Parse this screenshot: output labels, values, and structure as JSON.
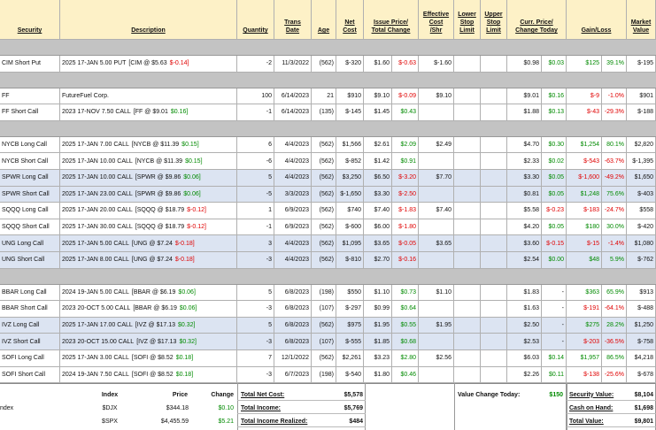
{
  "table": {
    "headers": [
      [
        "Security"
      ],
      [
        "Description"
      ],
      [
        "Quantity"
      ],
      [
        "Trans",
        "Date"
      ],
      [
        "Age"
      ],
      [
        "Net",
        "Cost"
      ],
      [
        "Issue Price/",
        "Total Change"
      ],
      [
        "Effective",
        "Cost",
        "/Shr"
      ],
      [
        "Lower",
        "Stop",
        "Limit"
      ],
      [
        "Upper",
        "Stop",
        "Limit"
      ],
      [
        "Curr. Price/",
        "Change Today"
      ],
      [
        "Gain/Loss"
      ],
      [
        "Market",
        "Value"
      ]
    ],
    "groups": [
      [
        {
          "security": "CIM Short Put",
          "description": "2025 17-JAN 5.00 PUT",
          "underlying": "[CIM @ $5.63",
          "underlying_change": "$-0.14]",
          "quantity": "-2",
          "trans_date": "11/3/2022",
          "age": "(562)",
          "net_cost": "$-320",
          "issue_price": "$1.60",
          "total_change": "$-0.63",
          "effective_cost": "$-1.60",
          "curr_price": "$0.98",
          "change_today": "$0.03",
          "gain": "$125",
          "gain_pct": "39.1%",
          "market_value": "$-195"
        }
      ],
      [
        {
          "security": "FF",
          "description": "FutureFuel Corp.",
          "quantity": "100",
          "trans_date": "6/14/2023",
          "age": "21",
          "net_cost": "$910",
          "issue_price": "$9.10",
          "total_change": "$-0.09",
          "effective_cost": "$9.10",
          "curr_price": "$9.01",
          "change_today": "$0.16",
          "gain": "$-9",
          "gain_pct": "-1.0%",
          "market_value": "$901"
        },
        {
          "security": "FF Short Call",
          "description": "2023 17-NOV 7.50 CALL",
          "underlying": "[FF @ $9.01",
          "underlying_change": "$0.16]",
          "quantity": "-1",
          "trans_date": "6/14/2023",
          "age": "(135)",
          "net_cost": "$-145",
          "issue_price": "$1.45",
          "total_change": "$0.43",
          "curr_price": "$1.88",
          "change_today": "$0.13",
          "gain": "$-43",
          "gain_pct": "-29.3%",
          "market_value": "$-188"
        }
      ],
      [
        {
          "security": "NYCB Long Call",
          "description": "2025 17-JAN 7.00 CALL",
          "underlying": "[NYCB @ $11.39",
          "underlying_change": "$0.15]",
          "quantity": "6",
          "trans_date": "4/4/2023",
          "age": "(562)",
          "net_cost": "$1,566",
          "issue_price": "$2.61",
          "total_change": "$2.09",
          "effective_cost": "$2.49",
          "curr_price": "$4.70",
          "change_today": "$0.30",
          "gain": "$1,254",
          "gain_pct": "80.1%",
          "market_value": "$2,820"
        },
        {
          "security": "NYCB Short Call",
          "description": "2025 17-JAN 10.00 CALL",
          "underlying": "[NYCB @ $11.39",
          "underlying_change": "$0.15]",
          "quantity": "-6",
          "trans_date": "4/4/2023",
          "age": "(562)",
          "net_cost": "$-852",
          "issue_price": "$1.42",
          "total_change": "$0.91",
          "curr_price": "$2.33",
          "change_today": "$0.02",
          "gain": "$-543",
          "gain_pct": "-63.7%",
          "market_value": "$-1,395"
        },
        {
          "security": "SPWR Long Call",
          "description": "2025 17-JAN 10.00 CALL",
          "underlying": "[SPWR @ $9.86",
          "underlying_change": "$0.06]",
          "quantity": "5",
          "trans_date": "4/4/2023",
          "age": "(562)",
          "net_cost": "$3,250",
          "issue_price": "$6.50",
          "total_change": "$-3.20",
          "effective_cost": "$7.70",
          "curr_price": "$3.30",
          "change_today": "$0.05",
          "gain": "$-1,600",
          "gain_pct": "-49.2%",
          "market_value": "$1,650",
          "highlight": true
        },
        {
          "security": "SPWR Short Call",
          "description": "2025 17-JAN 23.00 CALL",
          "underlying": "[SPWR @ $9.86",
          "underlying_change": "$0.06]",
          "quantity": "-5",
          "trans_date": "3/3/2023",
          "age": "(562)",
          "net_cost": "$-1,650",
          "issue_price": "$3.30",
          "total_change": "$-2.50",
          "curr_price": "$0.81",
          "change_today": "$0.05",
          "gain": "$1,248",
          "gain_pct": "75.6%",
          "market_value": "$-403",
          "highlight": true
        },
        {
          "security": "SQQQ Long Call",
          "description": "2025 17-JAN 20.00 CALL",
          "underlying": "[SQQQ @ $18.79",
          "underlying_change": "$-0.12]",
          "quantity": "1",
          "trans_date": "6/9/2023",
          "age": "(562)",
          "net_cost": "$740",
          "issue_price": "$7.40",
          "total_change": "$-1.83",
          "effective_cost": "$7.40",
          "curr_price": "$5.58",
          "change_today": "$-0.23",
          "gain": "$-183",
          "gain_pct": "-24.7%",
          "market_value": "$558"
        },
        {
          "security": "SQQQ Short Call",
          "description": "2025 17-JAN 30.00 CALL",
          "underlying": "[SQQQ @ $18.79",
          "underlying_change": "$-0.12]",
          "quantity": "-1",
          "trans_date": "6/9/2023",
          "age": "(562)",
          "net_cost": "$-600",
          "issue_price": "$6.00",
          "total_change": "$-1.80",
          "curr_price": "$4.20",
          "change_today": "$0.05",
          "gain": "$180",
          "gain_pct": "30.0%",
          "market_value": "$-420"
        },
        {
          "security": "UNG Long Call",
          "description": "2025 17-JAN 5.00 CALL",
          "underlying": "[UNG @ $7.24",
          "underlying_change": "$-0.18]",
          "quantity": "3",
          "trans_date": "4/4/2023",
          "age": "(562)",
          "net_cost": "$1,095",
          "issue_price": "$3.65",
          "total_change": "$-0.05",
          "effective_cost": "$3.65",
          "curr_price": "$3.60",
          "change_today": "$-0.15",
          "gain": "$-15",
          "gain_pct": "-1.4%",
          "market_value": "$1,080",
          "highlight": true
        },
        {
          "security": "UNG Short Call",
          "description": "2025 17-JAN 8.00 CALL",
          "underlying": "[UNG @ $7.24",
          "underlying_change": "$-0.18]",
          "quantity": "-3",
          "trans_date": "4/4/2023",
          "age": "(562)",
          "net_cost": "$-810",
          "issue_price": "$2.70",
          "total_change": "$-0.16",
          "curr_price": "$2.54",
          "change_today": "$0.00",
          "gain": "$48",
          "gain_pct": "5.9%",
          "market_value": "$-762",
          "highlight": true
        }
      ],
      [
        {
          "security": "BBAR Long Call",
          "description": "2024 19-JAN 5.00 CALL",
          "underlying": "[BBAR @ $6.19",
          "underlying_change": "$0.06]",
          "quantity": "5",
          "trans_date": "6/8/2023",
          "age": "(198)",
          "net_cost": "$550",
          "issue_price": "$1.10",
          "total_change": "$0.73",
          "effective_cost": "$1.10",
          "curr_price": "$1.83",
          "change_today": "-",
          "gain": "$363",
          "gain_pct": "65.9%",
          "market_value": "$913"
        },
        {
          "security": "BBAR Short Call",
          "description": "2023 20-OCT 5.00 CALL",
          "underlying": "[BBAR @ $6.19",
          "underlying_change": "$0.06]",
          "quantity": "-3",
          "trans_date": "6/8/2023",
          "age": "(107)",
          "net_cost": "$-297",
          "issue_price": "$0.99",
          "total_change": "$0.64",
          "curr_price": "$1.63",
          "change_today": "-",
          "gain": "$-191",
          "gain_pct": "-64.1%",
          "market_value": "$-488"
        },
        {
          "security": "IVZ Long Call",
          "description": "2025 17-JAN 17.00 CALL",
          "underlying": "[IVZ @ $17.13",
          "underlying_change": "$0.32]",
          "quantity": "5",
          "trans_date": "6/8/2023",
          "age": "(562)",
          "net_cost": "$975",
          "issue_price": "$1.95",
          "total_change": "$0.55",
          "effective_cost": "$1.95",
          "curr_price": "$2.50",
          "change_today": "-",
          "gain": "$275",
          "gain_pct": "28.2%",
          "market_value": "$1,250",
          "highlight": true
        },
        {
          "security": "IVZ Short Call",
          "description": "2023 20-OCT 15.00 CALL",
          "underlying": "[IVZ @ $17.13",
          "underlying_change": "$0.32]",
          "quantity": "-3",
          "trans_date": "6/8/2023",
          "age": "(107)",
          "net_cost": "$-555",
          "issue_price": "$1.85",
          "total_change": "$0.68",
          "curr_price": "$2.53",
          "change_today": "-",
          "gain": "$-203",
          "gain_pct": "-36.5%",
          "market_value": "$-758",
          "highlight": true
        },
        {
          "security": "SOFI Long Call",
          "description": "2025 17-JAN 3.00 CALL",
          "underlying": "[SOFI @ $8.52",
          "underlying_change": "$0.18]",
          "quantity": "7",
          "trans_date": "12/1/2022",
          "age": "(562)",
          "net_cost": "$2,261",
          "issue_price": "$3.23",
          "total_change": "$2.80",
          "effective_cost": "$2.56",
          "curr_price": "$6.03",
          "change_today": "$0.14",
          "gain": "$1,957",
          "gain_pct": "86.5%",
          "market_value": "$4,218"
        },
        {
          "security": "SOFI Short Call",
          "description": "2024 19-JAN 7.50 CALL",
          "underlying": "[SOFI @ $8.52",
          "underlying_change": "$0.18]",
          "quantity": "-3",
          "trans_date": "6/7/2023",
          "age": "(198)",
          "net_cost": "$-540",
          "issue_price": "$1.80",
          "total_change": "$0.46",
          "curr_price": "$2.26",
          "change_today": "$0.11",
          "gain": "$-138",
          "gain_pct": "-25.6%",
          "market_value": "$-678"
        }
      ]
    ]
  },
  "footer": {
    "index_headers": [
      "Index",
      "Price",
      "Change"
    ],
    "row_label": "ndex",
    "indexes": [
      [
        "$DJX",
        "$344.18",
        "$0.10"
      ],
      [
        "$SPX",
        "$4,455.59",
        "$5.21"
      ]
    ],
    "totals": [
      {
        "label": "Total Net Cost:",
        "value": "$5,578"
      },
      {
        "label": "Total Income:",
        "value": "$5,769"
      },
      {
        "label": "Total Income Realized:",
        "value": "$484"
      }
    ],
    "value_change": {
      "label": "Value Change Today:",
      "value": "$150"
    },
    "account": [
      {
        "label": "Security Value:",
        "value": "$8,104"
      },
      {
        "label": "Cash on Hand:",
        "value": "$1,698"
      },
      {
        "label": "Total Value:",
        "value": "$9,801"
      }
    ]
  }
}
